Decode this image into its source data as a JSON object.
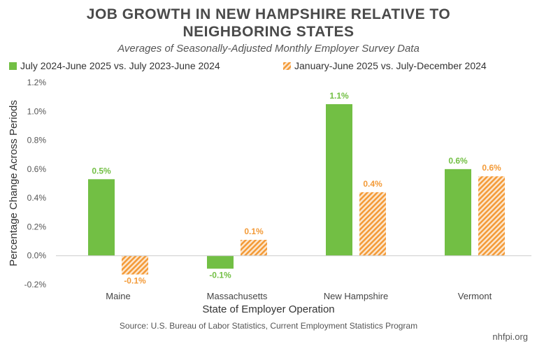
{
  "colors": {
    "series1": "#72bf44",
    "series2": "#f39a37",
    "series2_stripe_bg": "#fde6cc",
    "axis": "#cccccc",
    "title": "#4a4a4a"
  },
  "footer": {
    "source": "Source: U.S. Bureau of Labor Statistics, Current Employment Statistics Program",
    "credit": "nhfpi.org"
  },
  "chart_data": {
    "type": "bar",
    "title_lines": [
      "JOB GROWTH IN NEW HAMPSHIRE RELATIVE TO",
      "NEIGHBORING STATES"
    ],
    "subtitle": "Averages of Seasonally-Adjusted Monthly Employer Survey Data",
    "xlabel": "State of Employer Operation",
    "ylabel": "Percentage Change Across Periods",
    "categories": [
      "Maine",
      "Massachusetts",
      "New Hampshire",
      "Vermont"
    ],
    "series": [
      {
        "name": "July 2024-June 2025 vs. July 2023-June 2024",
        "values": [
          0.53,
          -0.09,
          1.05,
          0.6
        ],
        "labels": [
          "0.5%",
          "-0.1%",
          "1.1%",
          "0.6%"
        ]
      },
      {
        "name": "January-June 2025 vs. July-December 2024",
        "values": [
          -0.13,
          0.11,
          0.44,
          0.55
        ],
        "labels": [
          "-0.1%",
          "0.1%",
          "0.4%",
          "0.6%"
        ]
      }
    ],
    "ylim": [
      -0.2,
      1.2
    ],
    "yticks": [
      -0.2,
      0.0,
      0.2,
      0.4,
      0.6,
      0.8,
      1.0,
      1.2
    ],
    "ytick_labels": [
      "-0.2%",
      "0.0%",
      "0.2%",
      "0.4%",
      "0.6%",
      "0.8%",
      "1.0%",
      "1.2%"
    ],
    "grid": false,
    "legend": "top"
  }
}
